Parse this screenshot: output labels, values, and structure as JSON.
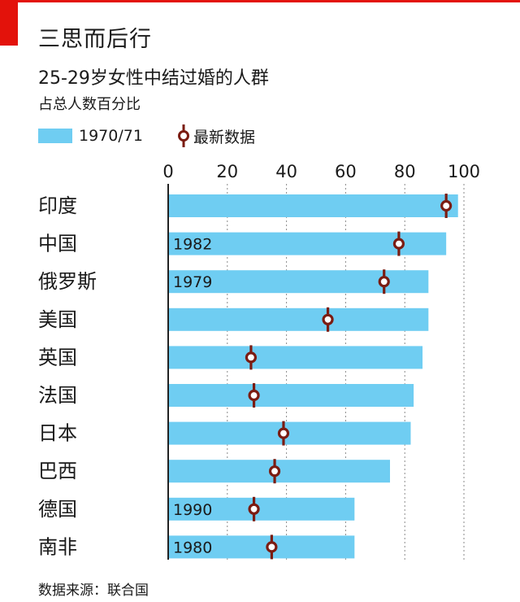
{
  "header": {
    "title": "三思而后行",
    "subtitle": "25-29岁女性中结过婚的人群",
    "unit": "占总人数百分比"
  },
  "legend": {
    "baseline_label": "1970/71",
    "latest_label": "最新数据"
  },
  "source": "数据来源：联合国",
  "colors": {
    "accent": "#e3120b",
    "bar": "#6fcdf2",
    "marker": "#7b1c12",
    "grid": "#8a8a8a",
    "axis": "#222222"
  },
  "chart_data": {
    "type": "bar",
    "orientation": "horizontal",
    "title": "25-29岁女性中结过婚的人群",
    "ylabel": "占总人数百分比",
    "xlim": [
      0,
      100
    ],
    "xticks": [
      0,
      20,
      40,
      60,
      80,
      100
    ],
    "categories": [
      "印度",
      "中国",
      "俄罗斯",
      "美国",
      "英国",
      "法国",
      "日本",
      "巴西",
      "德国",
      "南非"
    ],
    "series": [
      {
        "name": "1970/71",
        "style": "bar",
        "values": [
          98,
          94,
          88,
          88,
          86,
          83,
          82,
          75,
          63,
          63
        ]
      },
      {
        "name": "最新数据",
        "style": "marker",
        "values": [
          94,
          78,
          73,
          54,
          28,
          29,
          39,
          36,
          29,
          35
        ]
      }
    ],
    "baseline_year_notes": [
      "",
      "1982",
      "1979",
      "",
      "",
      "",
      "",
      "",
      "1990",
      "1980"
    ]
  }
}
